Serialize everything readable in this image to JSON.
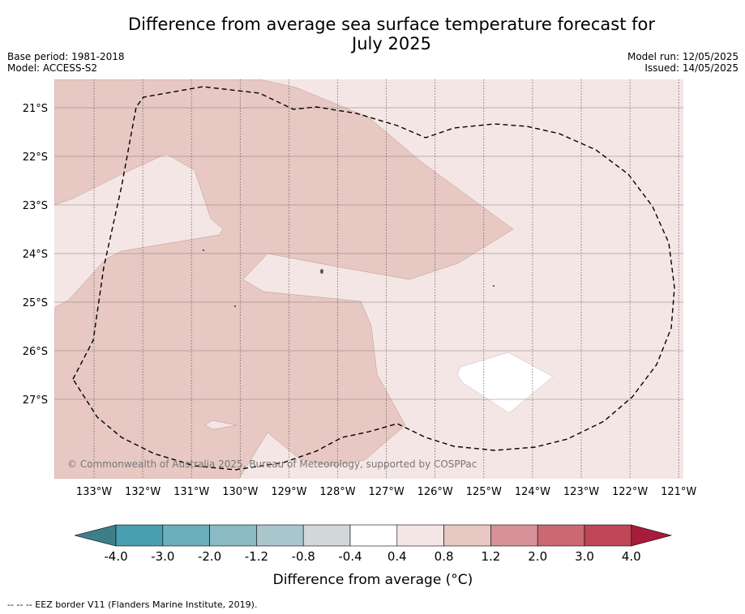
{
  "header": {
    "title_line1": "Difference from average sea surface temperature forecast for",
    "title_line2": "July 2025",
    "base_period": "Base period: 1981-2018",
    "model": "Model: ACCESS-S2",
    "model_run": "Model run: 12/05/2025",
    "issued": "Issued: 14/05/2025"
  },
  "map": {
    "lat_labels": [
      "21°S",
      "22°S",
      "23°S",
      "24°S",
      "25°S",
      "26°S",
      "27°S"
    ],
    "lon_labels": [
      "133°W",
      "132°W",
      "131°W",
      "130°W",
      "129°W",
      "128°W",
      "127°W",
      "126°W",
      "125°W",
      "124°W",
      "123°W",
      "122°W",
      "121°W"
    ],
    "copyright": "© Commonwealth of Australia 2025, Bureau of Meteorology, supported by COSPPac",
    "dashed_line_meaning": "EEZ border",
    "fill_colors": {
      "band_0_4_to_0_8": "#f4e6e4",
      "band_0_8_to_1_2": "#e7c8c3",
      "band_neg0_4_to_0_4": "#ffffff"
    }
  },
  "colorbar": {
    "ticks": [
      "-4.0",
      "-3.0",
      "-2.0",
      "-1.2",
      "-0.8",
      "-0.4",
      "0.4",
      "0.8",
      "1.2",
      "2.0",
      "3.0",
      "4.0"
    ],
    "colors": [
      "#479fb0",
      "#6aadbb",
      "#8bb9c4",
      "#a9c6cc",
      "#d0d8da",
      "#ffffff",
      "#f4e6e4",
      "#e7c8c3",
      "#d89198",
      "#cb6872",
      "#bf4656"
    ],
    "under_color": "#3d7f89",
    "over_color": "#a71b3b",
    "label": "Difference from average (°C)"
  },
  "footnote": "--  --  -- EEZ border V11 (Flanders Marine Institute, 2019)."
}
